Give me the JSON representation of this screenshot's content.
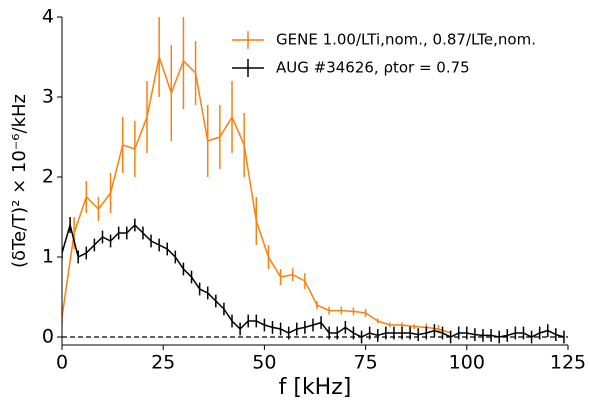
{
  "chart_data": {
    "type": "errorbar-line",
    "xlabel": "f [kHz]",
    "ylabel": "(δTe/T)² × 10⁻⁶/kHz",
    "xlim": [
      0,
      125
    ],
    "ylim": [
      -0.1,
      4
    ],
    "xticks": [
      0,
      25,
      50,
      75,
      100,
      125
    ],
    "yticks": [
      0,
      1,
      2,
      3,
      4
    ],
    "hline": 0,
    "legend": "upper right",
    "series": [
      {
        "name": "GENE 1.00/LTi,nom., 0.87/LTe,nom.",
        "color": "#ff7f0e",
        "x": [
          0,
          3,
          6,
          9,
          12,
          15,
          18,
          21,
          24,
          27,
          30,
          33,
          36,
          39,
          42,
          45,
          48,
          51,
          54,
          57,
          60,
          63,
          66,
          69,
          72,
          75,
          78,
          81,
          84,
          87,
          90,
          93,
          96
        ],
        "values": [
          0.25,
          1.3,
          1.75,
          1.6,
          1.8,
          2.4,
          2.35,
          2.75,
          3.5,
          3.05,
          3.45,
          3.3,
          2.45,
          2.5,
          2.75,
          2.4,
          1.45,
          1.0,
          0.75,
          0.78,
          0.7,
          0.4,
          0.33,
          0.33,
          0.32,
          0.3,
          0.2,
          0.15,
          0.15,
          0.13,
          0.12,
          0.1,
          0.05
        ],
        "errors": [
          0.1,
          0.2,
          0.2,
          0.15,
          0.25,
          0.35,
          0.35,
          0.45,
          0.5,
          0.6,
          0.6,
          0.4,
          0.45,
          0.4,
          0.45,
          0.4,
          0.3,
          0.15,
          0.1,
          0.08,
          0.1,
          0.05,
          0.05,
          0.05,
          0.05,
          0.05,
          0.03,
          0.03,
          0.03,
          0.03,
          0.05,
          0.05,
          0.03
        ]
      },
      {
        "name": "AUG #34626, ρtor = 0.75",
        "color": "#000000",
        "x": [
          0,
          2,
          4,
          6,
          8,
          10,
          12,
          14,
          16,
          18,
          20,
          22,
          24,
          26,
          28,
          30,
          32,
          34,
          36,
          38,
          40,
          42,
          44,
          46,
          48,
          50,
          52,
          54,
          56,
          58,
          60,
          62,
          64,
          66,
          68,
          70,
          72,
          74,
          76,
          78,
          80,
          82,
          84,
          86,
          88,
          90,
          92,
          94,
          96,
          98,
          100,
          102,
          104,
          106,
          108,
          110,
          112,
          114,
          116,
          118,
          120,
          122,
          124
        ],
        "values": [
          1.05,
          1.4,
          1.0,
          1.05,
          1.15,
          1.25,
          1.2,
          1.3,
          1.3,
          1.4,
          1.3,
          1.2,
          1.15,
          1.1,
          1.0,
          0.85,
          0.75,
          0.6,
          0.55,
          0.45,
          0.35,
          0.2,
          0.1,
          0.2,
          0.2,
          0.15,
          0.12,
          0.1,
          0.05,
          0.1,
          0.12,
          0.15,
          0.18,
          0.05,
          0.05,
          0.12,
          0.05,
          0.0,
          0.05,
          0.02,
          0.05,
          0.05,
          0.05,
          0.05,
          0.03,
          0.05,
          0.08,
          0.05,
          0.0,
          0.05,
          0.05,
          0.03,
          0.02,
          0.02,
          0.0,
          0.02,
          0.05,
          0.05,
          0.0,
          0.05,
          0.08,
          0.03,
          0.0
        ],
        "errors": [
          0.08,
          0.1,
          0.08,
          0.08,
          0.08,
          0.08,
          0.08,
          0.08,
          0.08,
          0.08,
          0.08,
          0.08,
          0.08,
          0.08,
          0.08,
          0.08,
          0.08,
          0.08,
          0.08,
          0.08,
          0.08,
          0.08,
          0.08,
          0.08,
          0.08,
          0.08,
          0.08,
          0.08,
          0.08,
          0.08,
          0.08,
          0.08,
          0.08,
          0.08,
          0.08,
          0.08,
          0.08,
          0.08,
          0.08,
          0.08,
          0.08,
          0.08,
          0.08,
          0.08,
          0.08,
          0.08,
          0.08,
          0.08,
          0.08,
          0.08,
          0.08,
          0.08,
          0.08,
          0.08,
          0.08,
          0.08,
          0.08,
          0.08,
          0.08,
          0.08,
          0.08,
          0.08,
          0.08
        ]
      }
    ]
  }
}
